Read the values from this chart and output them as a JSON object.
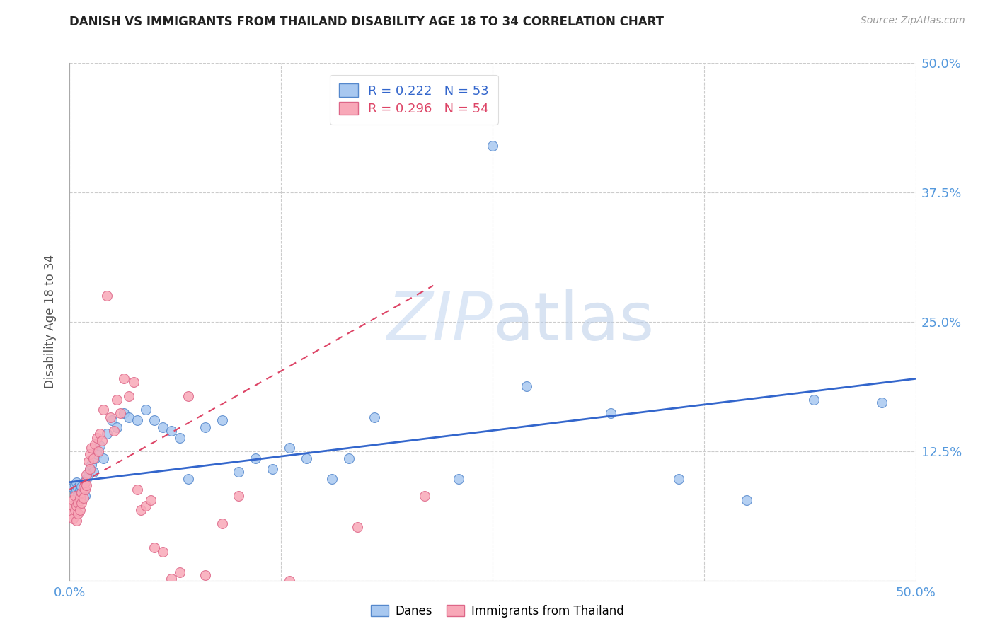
{
  "title": "DANISH VS IMMIGRANTS FROM THAILAND DISABILITY AGE 18 TO 34 CORRELATION CHART",
  "source": "Source: ZipAtlas.com",
  "ylabel": "Disability Age 18 to 34",
  "xlim": [
    0.0,
    0.5
  ],
  "ylim": [
    0.0,
    0.5
  ],
  "danes_color": "#a8c8f0",
  "danes_edge_color": "#5588cc",
  "thailand_color": "#f8a8b8",
  "thailand_edge_color": "#dd6688",
  "danes_line_color": "#3366cc",
  "thailand_line_color": "#dd4466",
  "danes_R": 0.222,
  "danes_N": 53,
  "thailand_R": 0.296,
  "thailand_N": 54,
  "legend_label_danes": "Danes",
  "legend_label_thailand": "Immigrants from Thailand",
  "danes_trend": [
    0.095,
    0.195
  ],
  "thailand_trend_x": [
    0.0,
    0.215
  ],
  "thailand_trend_y": [
    0.088,
    0.285
  ],
  "danes_x": [
    0.002,
    0.003,
    0.003,
    0.004,
    0.004,
    0.005,
    0.005,
    0.006,
    0.006,
    0.007,
    0.007,
    0.008,
    0.009,
    0.009,
    0.01,
    0.011,
    0.012,
    0.013,
    0.014,
    0.015,
    0.016,
    0.018,
    0.02,
    0.022,
    0.025,
    0.028,
    0.032,
    0.035,
    0.04,
    0.045,
    0.05,
    0.055,
    0.06,
    0.065,
    0.07,
    0.08,
    0.09,
    0.1,
    0.11,
    0.12,
    0.13,
    0.14,
    0.155,
    0.165,
    0.18,
    0.23,
    0.25,
    0.27,
    0.32,
    0.36,
    0.4,
    0.44,
    0.48
  ],
  "danes_y": [
    0.09,
    0.085,
    0.092,
    0.088,
    0.095,
    0.082,
    0.09,
    0.087,
    0.093,
    0.085,
    0.091,
    0.088,
    0.095,
    0.082,
    0.098,
    0.102,
    0.108,
    0.112,
    0.105,
    0.118,
    0.122,
    0.13,
    0.118,
    0.142,
    0.155,
    0.148,
    0.162,
    0.158,
    0.155,
    0.165,
    0.155,
    0.148,
    0.145,
    0.138,
    0.098,
    0.148,
    0.155,
    0.105,
    0.118,
    0.108,
    0.128,
    0.118,
    0.098,
    0.118,
    0.158,
    0.098,
    0.42,
    0.188,
    0.162,
    0.098,
    0.078,
    0.175,
    0.172
  ],
  "thailand_x": [
    0.001,
    0.001,
    0.002,
    0.002,
    0.003,
    0.003,
    0.004,
    0.004,
    0.005,
    0.005,
    0.006,
    0.006,
    0.007,
    0.007,
    0.008,
    0.008,
    0.009,
    0.009,
    0.01,
    0.01,
    0.011,
    0.012,
    0.012,
    0.013,
    0.014,
    0.015,
    0.016,
    0.017,
    0.018,
    0.019,
    0.02,
    0.022,
    0.024,
    0.026,
    0.028,
    0.03,
    0.032,
    0.035,
    0.038,
    0.04,
    0.042,
    0.045,
    0.048,
    0.05,
    0.055,
    0.06,
    0.065,
    0.07,
    0.08,
    0.09,
    0.1,
    0.13,
    0.17,
    0.21
  ],
  "thailand_y": [
    0.072,
    0.065,
    0.078,
    0.06,
    0.068,
    0.082,
    0.058,
    0.072,
    0.065,
    0.075,
    0.08,
    0.068,
    0.075,
    0.085,
    0.08,
    0.09,
    0.088,
    0.095,
    0.102,
    0.092,
    0.115,
    0.122,
    0.108,
    0.128,
    0.118,
    0.132,
    0.138,
    0.125,
    0.142,
    0.135,
    0.165,
    0.275,
    0.158,
    0.145,
    0.175,
    0.162,
    0.195,
    0.178,
    0.192,
    0.088,
    0.068,
    0.072,
    0.078,
    0.032,
    0.028,
    0.002,
    0.008,
    0.178,
    0.005,
    0.055,
    0.082,
    0.0,
    0.052,
    0.082
  ]
}
